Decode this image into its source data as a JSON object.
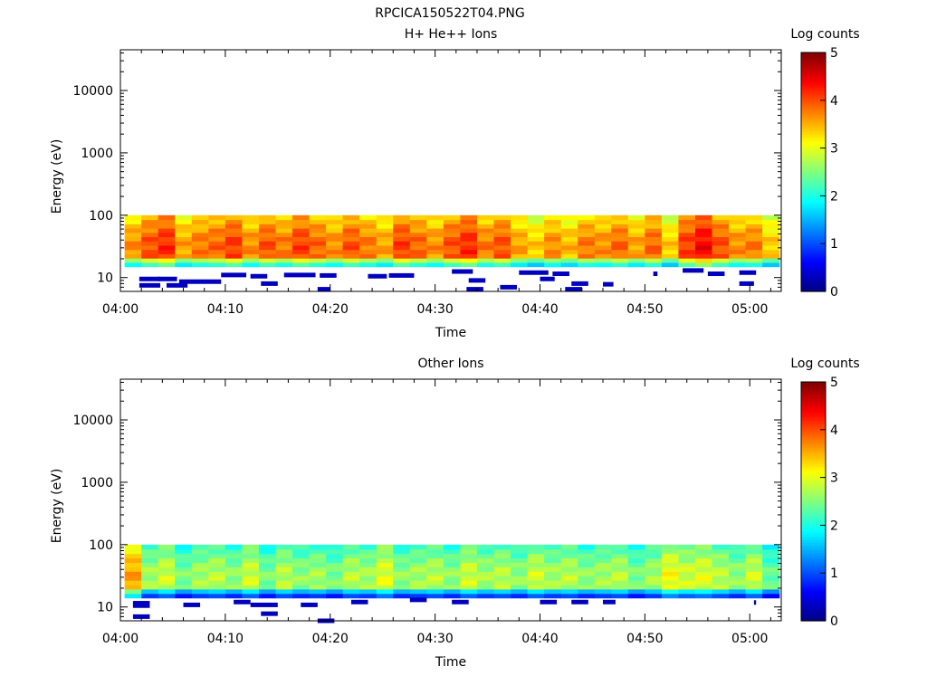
{
  "page_title": "RPCICA150522T04.PNG",
  "colors": {
    "axis": "#000000",
    "background": "#ffffff"
  },
  "chart_data": [
    {
      "type": "heatmap",
      "title": "H+ He++ Ions",
      "xlabel": "Time",
      "ylabel": "Energy (eV)",
      "x_tick_labels": [
        "04:00",
        "04:10",
        "04:20",
        "04:30",
        "04:40",
        "04:50",
        "05:00"
      ],
      "x_ticks_minutes": [
        0,
        10,
        20,
        30,
        40,
        50,
        60
      ],
      "xlim_minutes": [
        0,
        63
      ],
      "y_scale": "log",
      "ylim": [
        6,
        45000
      ],
      "y_tick_labels": [
        "10",
        "100",
        "1000",
        "10000"
      ],
      "y_ticks": [
        10,
        100,
        1000,
        10000
      ],
      "colorbar": {
        "label": "Log counts",
        "range": [
          0,
          5
        ],
        "tick_labels": [
          "0",
          "1",
          "2",
          "3",
          "4",
          "5"
        ],
        "colormap": "jet"
      },
      "time_bins_minutes": [
        1.2,
        2.8,
        4.4,
        6.0,
        7.6,
        9.2,
        10.8,
        12.4,
        14.0,
        15.6,
        17.2,
        18.8,
        20.4,
        22.0,
        23.6,
        25.2,
        26.8,
        28.4,
        30.0,
        31.6,
        33.2,
        34.8,
        36.4,
        38.0,
        39.6,
        41.2,
        42.8,
        44.4,
        46.0,
        47.6,
        49.2,
        50.8,
        52.4,
        54.0,
        55.6,
        57.2,
        58.8,
        60.4,
        62.0
      ],
      "band_energy_range_eV": [
        15,
        100
      ],
      "band_mean_log_counts": [
        3.5,
        3.8,
        4.0,
        3.4,
        3.6,
        3.7,
        3.9,
        3.5,
        3.8,
        3.6,
        3.9,
        3.7,
        3.5,
        3.8,
        3.6,
        3.4,
        3.9,
        3.7,
        3.5,
        3.8,
        4.0,
        3.6,
        3.8,
        3.4,
        3.2,
        3.5,
        3.3,
        3.6,
        3.5,
        3.7,
        3.4,
        3.7,
        3.2,
        3.9,
        4.2,
        3.8,
        3.5,
        3.6,
        3.2
      ],
      "low_energy_fragments_eV": [
        [
          1.8,
          3.8,
          9.5
        ],
        [
          1.8,
          3.8,
          7.5
        ],
        [
          3.6,
          5.4,
          9.5
        ],
        [
          4.4,
          6.4,
          7.5
        ],
        [
          5.6,
          9.6,
          8.6
        ],
        [
          9.6,
          12.0,
          11.0
        ],
        [
          12.4,
          14.0,
          10.5
        ],
        [
          13.4,
          15.0,
          8.0
        ],
        [
          15.6,
          18.6,
          11.0
        ],
        [
          18.8,
          20.0,
          6.5
        ],
        [
          19.0,
          20.6,
          10.8
        ],
        [
          23.6,
          25.4,
          10.5
        ],
        [
          25.6,
          28.0,
          10.8
        ],
        [
          31.6,
          33.6,
          12.5
        ],
        [
          33.2,
          34.8,
          9.0
        ],
        [
          33.0,
          34.6,
          6.5
        ],
        [
          36.2,
          37.8,
          7.0
        ],
        [
          38.0,
          40.8,
          12.0
        ],
        [
          40.0,
          41.4,
          9.5
        ],
        [
          41.2,
          42.8,
          11.5
        ],
        [
          42.4,
          44.0,
          6.5
        ],
        [
          43.0,
          44.6,
          8.0
        ],
        [
          46.0,
          47.0,
          7.8
        ],
        [
          50.8,
          51.2,
          11.5
        ],
        [
          53.6,
          55.6,
          13.0
        ],
        [
          56.0,
          57.6,
          11.5
        ],
        [
          59.0,
          60.4,
          8.0
        ],
        [
          59.0,
          60.6,
          12.0
        ]
      ]
    },
    {
      "type": "heatmap",
      "title": "Other Ions",
      "xlabel": "Time",
      "ylabel": "Energy (eV)",
      "x_tick_labels": [
        "04:00",
        "04:10",
        "04:20",
        "04:30",
        "04:40",
        "04:50",
        "05:00"
      ],
      "x_ticks_minutes": [
        0,
        10,
        20,
        30,
        40,
        50,
        60
      ],
      "xlim_minutes": [
        0,
        63
      ],
      "y_scale": "log",
      "ylim": [
        6,
        45000
      ],
      "y_tick_labels": [
        "10",
        "100",
        "1000",
        "10000"
      ],
      "y_ticks": [
        10,
        100,
        1000,
        10000
      ],
      "colorbar": {
        "label": "Log counts",
        "range": [
          0,
          5
        ],
        "tick_labels": [
          "0",
          "1",
          "2",
          "3",
          "4",
          "5"
        ],
        "colormap": "jet"
      },
      "time_bins_minutes": [
        1.2,
        2.8,
        4.4,
        6.0,
        7.6,
        9.2,
        10.8,
        12.4,
        14.0,
        15.6,
        17.2,
        18.8,
        20.4,
        22.0,
        23.6,
        25.2,
        26.8,
        28.4,
        30.0,
        31.6,
        33.2,
        34.8,
        36.4,
        38.0,
        39.6,
        41.2,
        42.8,
        44.4,
        46.0,
        47.6,
        49.2,
        50.8,
        52.4,
        54.0,
        55.6,
        57.2,
        58.8,
        60.4,
        62.0
      ],
      "band_energy_range_eV": [
        14,
        100
      ],
      "band_mean_log_counts": [
        3.4,
        2.5,
        2.7,
        2.3,
        2.5,
        2.6,
        2.4,
        2.7,
        2.3,
        2.6,
        2.4,
        2.5,
        2.3,
        2.6,
        2.5,
        2.8,
        2.4,
        2.5,
        2.6,
        2.4,
        2.7,
        2.5,
        2.6,
        2.4,
        2.7,
        2.5,
        2.6,
        2.4,
        2.5,
        2.6,
        2.3,
        2.5,
        2.9,
        2.7,
        2.8,
        2.6,
        2.4,
        2.7,
        2.2
      ],
      "low_energy_fragments_eV": [
        [
          1.2,
          2.8,
          11.5
        ],
        [
          1.2,
          2.8,
          10.5
        ],
        [
          1.2,
          2.8,
          7.0
        ],
        [
          6.0,
          7.6,
          10.8
        ],
        [
          10.8,
          12.4,
          12.0
        ],
        [
          12.4,
          15.0,
          10.8
        ],
        [
          13.4,
          15.0,
          7.8
        ],
        [
          17.2,
          18.8,
          10.8
        ],
        [
          18.8,
          20.4,
          6.0
        ],
        [
          22.0,
          23.6,
          12.0
        ],
        [
          27.6,
          29.2,
          13.0
        ],
        [
          31.6,
          33.2,
          12.0
        ],
        [
          40.0,
          41.6,
          12.0
        ],
        [
          43.0,
          44.6,
          12.0
        ],
        [
          46.0,
          47.2,
          12.0
        ],
        [
          60.4,
          60.6,
          11.8
        ]
      ]
    }
  ]
}
